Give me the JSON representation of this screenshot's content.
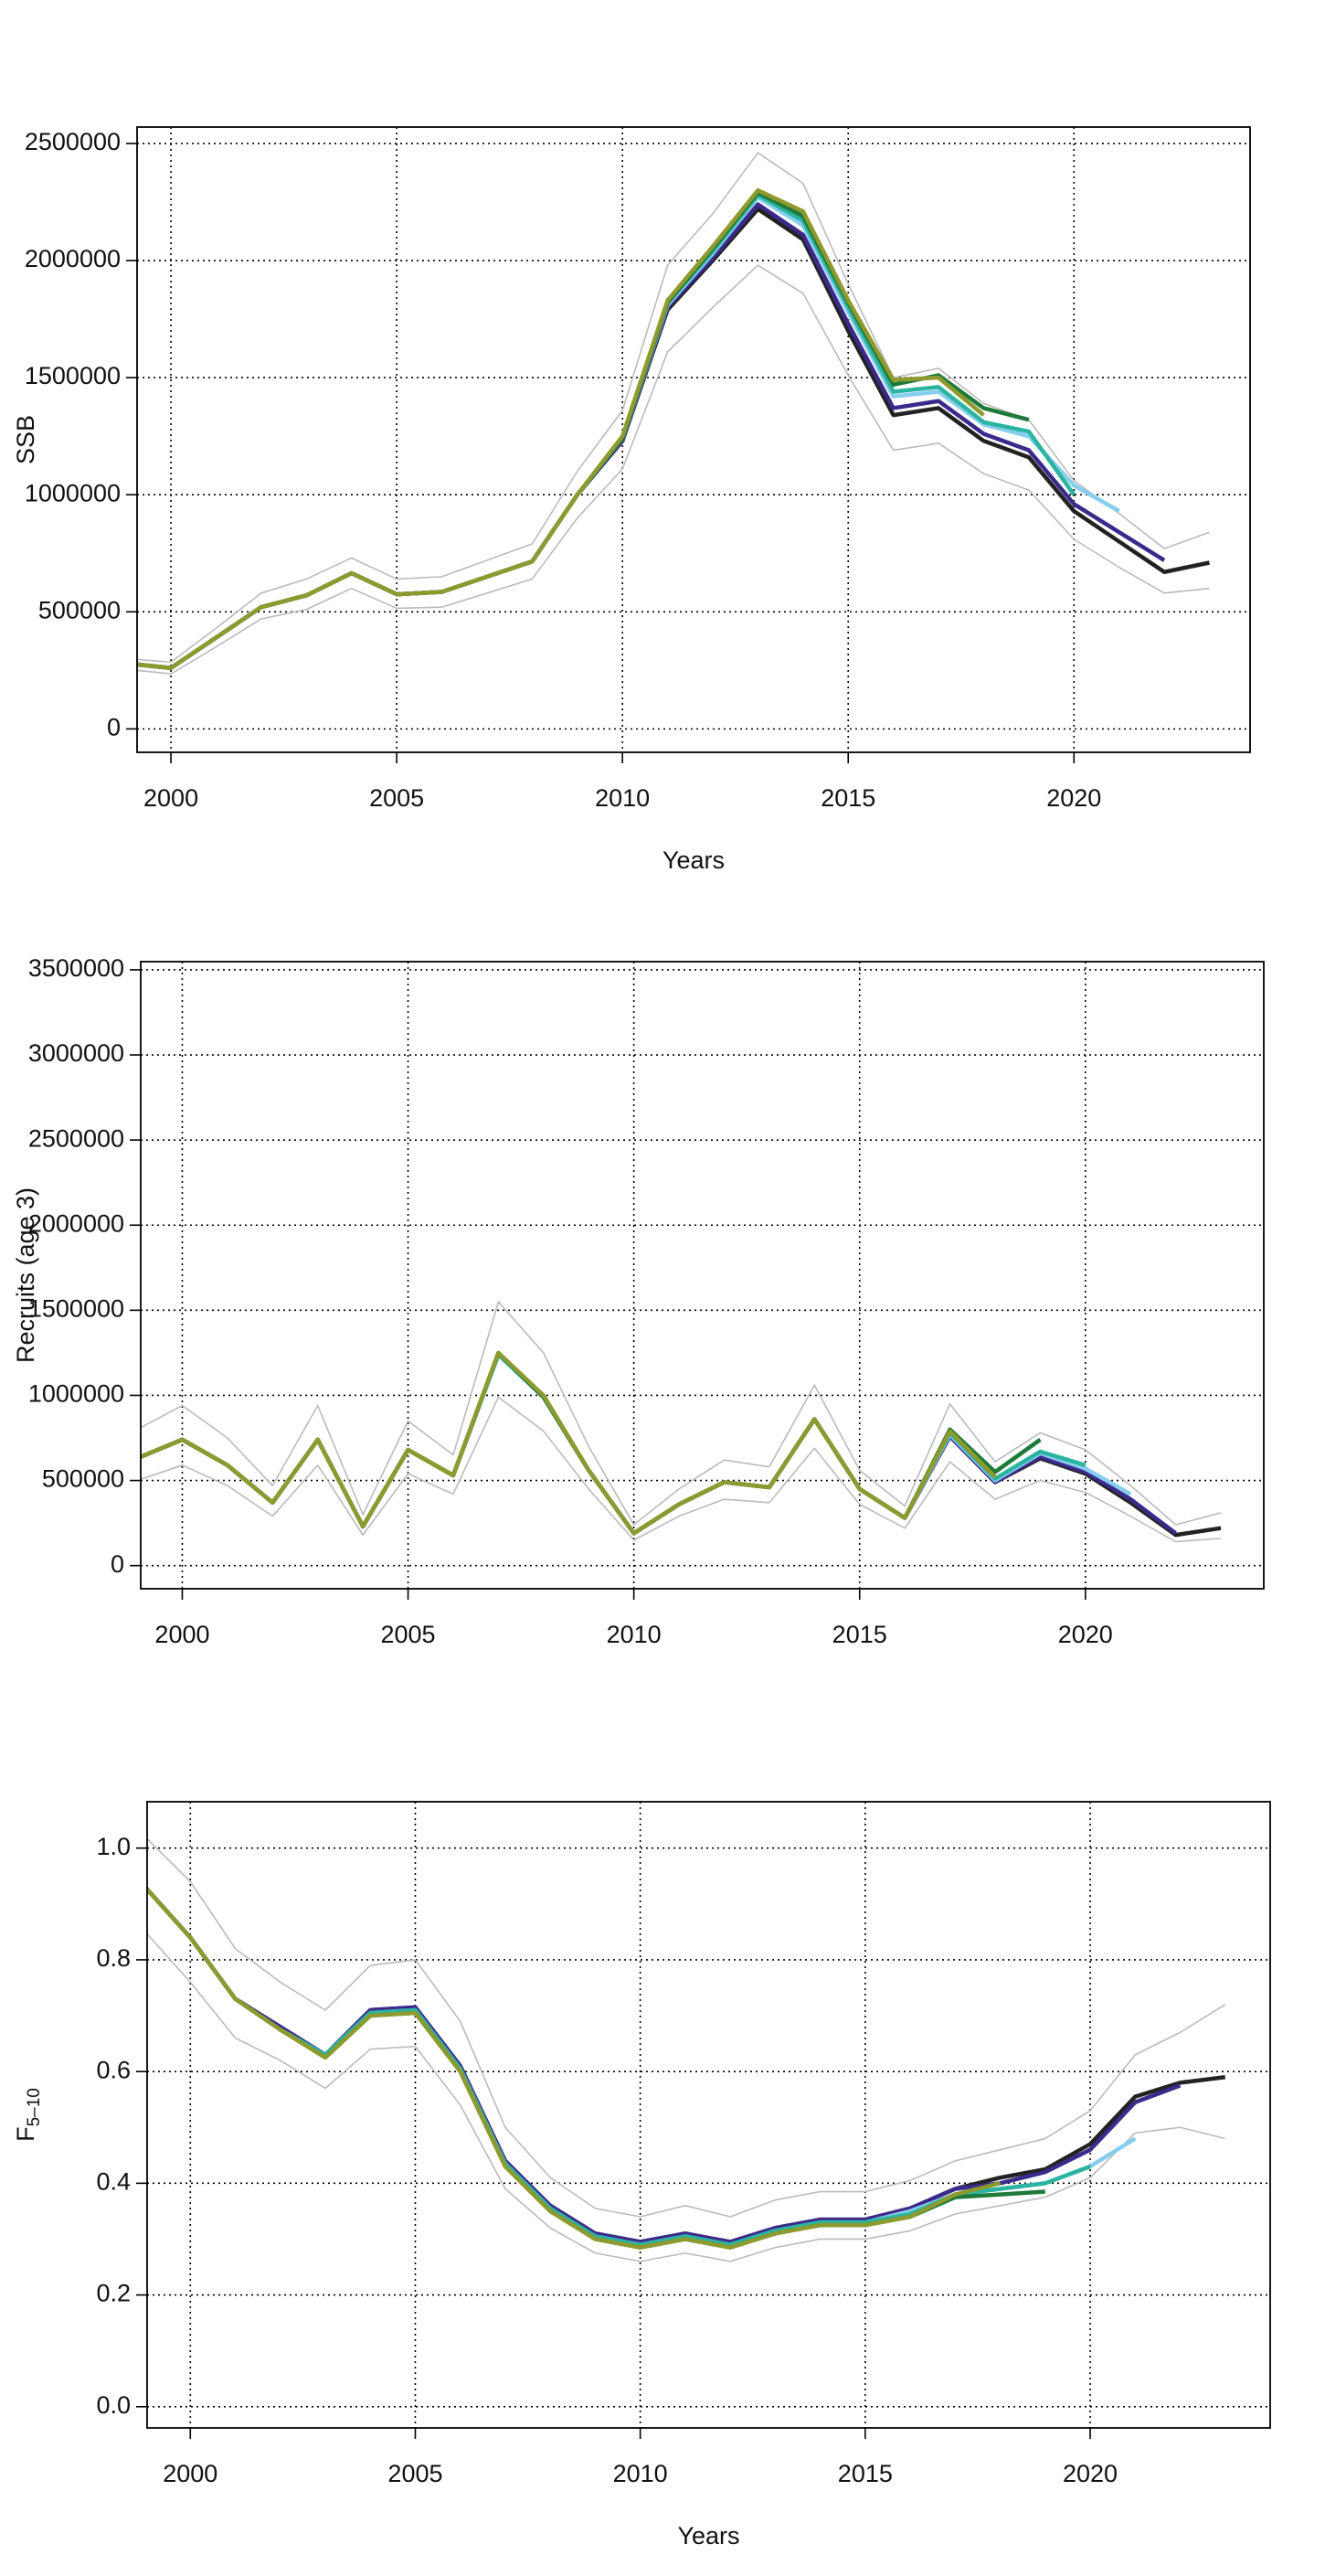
{
  "chart_data": [
    {
      "type": "line",
      "xlabel": "Years",
      "ylabel": "SSB",
      "x": [
        1999,
        2000,
        2001,
        2002,
        2003,
        2004,
        2005,
        2006,
        2007,
        2008,
        2009,
        2010,
        2011,
        2012,
        2013,
        2014,
        2015,
        2016,
        2017,
        2018,
        2019,
        2020,
        2021,
        2022,
        2023
      ],
      "xlim": [
        1999.25,
        2023.9
      ],
      "ylim": [
        -100000,
        2570000
      ],
      "xticks": [
        2000,
        2005,
        2010,
        2015,
        2020
      ],
      "yticks": [
        0,
        500000,
        1000000,
        1500000,
        2000000,
        2500000
      ],
      "grid": true,
      "series": [
        {
          "color": "#bbbbbb",
          "lw": 1.6,
          "values": [
            300000,
            285000,
            430000,
            580000,
            640000,
            730000,
            640000,
            650000,
            720000,
            790000,
            1100000,
            1360000,
            1980000,
            2200000,
            2460000,
            2330000,
            1900000,
            1500000,
            1540000,
            1390000,
            1320000,
            1060000,
            920000,
            770000,
            840000
          ]
        },
        {
          "color": "#bbbbbb",
          "lw": 1.6,
          "values": [
            255000,
            235000,
            350000,
            470000,
            510000,
            600000,
            515000,
            520000,
            580000,
            640000,
            900000,
            1110000,
            1610000,
            1800000,
            1980000,
            1860000,
            1510000,
            1190000,
            1220000,
            1090000,
            1020000,
            810000,
            690000,
            580000,
            600000
          ]
        },
        {
          "color": "#222222",
          "lw": 4.5,
          "values": [
            280000,
            260000,
            390000,
            520000,
            570000,
            665000,
            575000,
            585000,
            650000,
            715000,
            1000000,
            1230000,
            1790000,
            2000000,
            2220000,
            2090000,
            1700000,
            1340000,
            1370000,
            1230000,
            1160000,
            930000,
            800000,
            670000,
            710000
          ]
        },
        {
          "color": "#3b2a8c",
          "lw": 4.5,
          "values": [
            280000,
            260000,
            390000,
            520000,
            570000,
            665000,
            575000,
            585000,
            650000,
            715000,
            1000000,
            1230000,
            1800000,
            2010000,
            2240000,
            2110000,
            1730000,
            1370000,
            1400000,
            1260000,
            1190000,
            960000,
            840000,
            720000,
            null
          ]
        },
        {
          "color": "#87cdee",
          "lw": 4.5,
          "values": [
            280000,
            260000,
            390000,
            520000,
            570000,
            665000,
            575000,
            585000,
            650000,
            715000,
            1000000,
            1240000,
            1810000,
            2030000,
            2270000,
            2150000,
            1780000,
            1420000,
            1440000,
            1300000,
            1250000,
            1040000,
            930000,
            null,
            null
          ]
        },
        {
          "color": "#2bb5a0",
          "lw": 4.5,
          "values": [
            280000,
            260000,
            390000,
            520000,
            570000,
            665000,
            575000,
            585000,
            650000,
            715000,
            1000000,
            1240000,
            1820000,
            2040000,
            2280000,
            2170000,
            1800000,
            1440000,
            1460000,
            1310000,
            1270000,
            1000000,
            null,
            null,
            null
          ]
        },
        {
          "color": "#1f7a3a",
          "lw": 4.5,
          "values": [
            280000,
            260000,
            390000,
            520000,
            570000,
            665000,
            575000,
            585000,
            650000,
            715000,
            1000000,
            1240000,
            1820000,
            2050000,
            2290000,
            2190000,
            1820000,
            1470000,
            1510000,
            1370000,
            1320000,
            null,
            null,
            null,
            null
          ]
        },
        {
          "color": "#8f9a2e",
          "lw": 4.5,
          "values": [
            280000,
            260000,
            390000,
            520000,
            570000,
            665000,
            575000,
            585000,
            650000,
            715000,
            1000000,
            1250000,
            1830000,
            2060000,
            2300000,
            2210000,
            1830000,
            1490000,
            1500000,
            1340000,
            null,
            null,
            null,
            null,
            null
          ]
        }
      ]
    },
    {
      "type": "line",
      "ylabel": "Recruits (age 3)",
      "x": [
        1999,
        2000,
        2001,
        2002,
        2003,
        2004,
        2005,
        2006,
        2007,
        2008,
        2009,
        2010,
        2011,
        2012,
        2013,
        2014,
        2015,
        2016,
        2017,
        2018,
        2019,
        2020,
        2021,
        2022,
        2023
      ],
      "xlim": [
        1999.08,
        2023.95
      ],
      "ylim": [
        -136000,
        3548000
      ],
      "xticks": [
        2000,
        2005,
        2010,
        2015,
        2020
      ],
      "yticks": [
        0,
        500000,
        1000000,
        1500000,
        2000000,
        2500000,
        3000000,
        3500000
      ],
      "grid": true,
      "series": [
        {
          "color": "#bbbbbb",
          "lw": 1.6,
          "values": [
            800000,
            940000,
            750000,
            470000,
            940000,
            300000,
            850000,
            650000,
            1550000,
            1250000,
            700000,
            240000,
            450000,
            620000,
            580000,
            1060000,
            560000,
            350000,
            950000,
            610000,
            780000,
            680000,
            470000,
            240000,
            310000
          ]
        },
        {
          "color": "#bbbbbb",
          "lw": 1.6,
          "values": [
            500000,
            590000,
            470000,
            290000,
            590000,
            180000,
            540000,
            420000,
            990000,
            790000,
            450000,
            150000,
            290000,
            390000,
            370000,
            690000,
            360000,
            220000,
            610000,
            390000,
            500000,
            430000,
            290000,
            140000,
            160000
          ]
        },
        {
          "color": "#222222",
          "lw": 4.5,
          "values": [
            630000,
            740000,
            590000,
            370000,
            740000,
            230000,
            680000,
            530000,
            1240000,
            990000,
            560000,
            190000,
            360000,
            490000,
            460000,
            860000,
            450000,
            280000,
            760000,
            490000,
            630000,
            540000,
            370000,
            180000,
            220000
          ]
        },
        {
          "color": "#3b2a8c",
          "lw": 4.5,
          "values": [
            630000,
            740000,
            590000,
            370000,
            740000,
            230000,
            680000,
            530000,
            1240000,
            990000,
            560000,
            190000,
            360000,
            490000,
            460000,
            860000,
            450000,
            280000,
            760000,
            490000,
            640000,
            550000,
            390000,
            190000,
            null
          ]
        },
        {
          "color": "#87cdee",
          "lw": 4.5,
          "values": [
            630000,
            740000,
            590000,
            370000,
            740000,
            230000,
            680000,
            530000,
            1240000,
            990000,
            560000,
            190000,
            360000,
            490000,
            460000,
            860000,
            450000,
            280000,
            770000,
            500000,
            660000,
            570000,
            420000,
            null,
            null
          ]
        },
        {
          "color": "#2bb5a0",
          "lw": 4.5,
          "values": [
            630000,
            740000,
            590000,
            370000,
            740000,
            230000,
            680000,
            530000,
            1240000,
            990000,
            560000,
            190000,
            360000,
            490000,
            460000,
            860000,
            450000,
            280000,
            780000,
            510000,
            670000,
            590000,
            null,
            null,
            null
          ]
        },
        {
          "color": "#1f7a3a",
          "lw": 4.5,
          "values": [
            630000,
            740000,
            590000,
            370000,
            740000,
            230000,
            680000,
            530000,
            1250000,
            990000,
            560000,
            190000,
            360000,
            490000,
            460000,
            860000,
            450000,
            280000,
            800000,
            550000,
            740000,
            null,
            null,
            null,
            null
          ]
        },
        {
          "color": "#8f9a2e",
          "lw": 4.5,
          "values": [
            630000,
            740000,
            590000,
            370000,
            740000,
            230000,
            680000,
            530000,
            1250000,
            1000000,
            560000,
            190000,
            360000,
            490000,
            460000,
            860000,
            450000,
            280000,
            790000,
            520000,
            null,
            null,
            null,
            null,
            null
          ]
        }
      ]
    },
    {
      "type": "line",
      "xlabel": "Years",
      "ylabel": "F",
      "ylabel_subscript": "5–10",
      "x": [
        1999,
        2000,
        2001,
        2002,
        2003,
        2004,
        2005,
        2006,
        2007,
        2008,
        2009,
        2010,
        2011,
        2012,
        2013,
        2014,
        2015,
        2016,
        2017,
        2018,
        2019,
        2020,
        2021,
        2022,
        2023
      ],
      "xlim": [
        1999.04,
        2024.0
      ],
      "ylim": [
        -0.038,
        1.083
      ],
      "xticks": [
        2000,
        2005,
        2010,
        2015,
        2020
      ],
      "yticks": [
        {
          "value": 0,
          "label": "0.0"
        },
        0.2,
        0.4,
        0.6,
        0.8,
        {
          "value": 1,
          "label": "1.0"
        }
      ],
      "grid": true,
      "series": [
        {
          "color": "#bbbbbb",
          "lw": 1.6,
          "values": [
            1.02,
            0.94,
            0.82,
            0.76,
            0.71,
            0.79,
            0.8,
            0.69,
            0.5,
            0.41,
            0.355,
            0.34,
            0.36,
            0.34,
            0.37,
            0.385,
            0.385,
            0.405,
            0.44,
            0.46,
            0.48,
            0.53,
            0.63,
            0.67,
            0.72
          ]
        },
        {
          "color": "#bbbbbb",
          "lw": 1.6,
          "values": [
            0.85,
            0.76,
            0.66,
            0.62,
            0.57,
            0.64,
            0.645,
            0.54,
            0.39,
            0.32,
            0.275,
            0.26,
            0.275,
            0.26,
            0.285,
            0.3,
            0.3,
            0.315,
            0.345,
            0.36,
            0.375,
            0.41,
            0.49,
            0.5,
            0.48
          ]
        },
        {
          "color": "#222222",
          "lw": 4.5,
          "values": [
            0.93,
            0.84,
            0.73,
            0.68,
            0.63,
            0.71,
            0.715,
            0.61,
            0.44,
            0.36,
            0.31,
            0.295,
            0.31,
            0.295,
            0.32,
            0.335,
            0.335,
            0.355,
            0.39,
            0.41,
            0.425,
            0.47,
            0.555,
            0.58,
            0.59
          ]
        },
        {
          "color": "#3b2a8c",
          "lw": 4.5,
          "values": [
            0.93,
            0.84,
            0.73,
            0.68,
            0.63,
            0.71,
            0.715,
            0.61,
            0.44,
            0.36,
            0.31,
            0.295,
            0.31,
            0.295,
            0.32,
            0.335,
            0.335,
            0.355,
            0.39,
            0.4,
            0.42,
            0.46,
            0.545,
            0.575,
            null
          ]
        },
        {
          "color": "#87cdee",
          "lw": 4.5,
          "values": [
            0.93,
            0.84,
            0.73,
            0.675,
            0.63,
            0.705,
            0.71,
            0.605,
            0.435,
            0.355,
            0.305,
            0.29,
            0.305,
            0.29,
            0.315,
            0.33,
            0.33,
            0.35,
            0.38,
            0.39,
            0.4,
            0.43,
            0.48,
            null,
            null
          ]
        },
        {
          "color": "#2bb5a0",
          "lw": 4.5,
          "values": [
            0.93,
            0.84,
            0.73,
            0.675,
            0.63,
            0.705,
            0.71,
            0.605,
            0.435,
            0.355,
            0.305,
            0.29,
            0.305,
            0.29,
            0.315,
            0.33,
            0.33,
            0.345,
            0.38,
            0.39,
            0.4,
            0.43,
            null,
            null,
            null
          ]
        },
        {
          "color": "#1f7a3a",
          "lw": 4.5,
          "values": [
            0.93,
            0.84,
            0.73,
            0.675,
            0.625,
            0.7,
            0.705,
            0.6,
            0.43,
            0.35,
            0.3,
            0.285,
            0.3,
            0.285,
            0.31,
            0.325,
            0.325,
            0.34,
            0.375,
            0.38,
            0.385,
            null,
            null,
            null,
            null
          ]
        },
        {
          "color": "#8f9a2e",
          "lw": 4.5,
          "values": [
            0.93,
            0.84,
            0.73,
            0.675,
            0.625,
            0.7,
            0.705,
            0.6,
            0.43,
            0.35,
            0.3,
            0.285,
            0.3,
            0.285,
            0.31,
            0.325,
            0.325,
            0.34,
            0.38,
            0.4,
            null,
            null,
            null,
            null,
            null
          ]
        }
      ]
    }
  ]
}
